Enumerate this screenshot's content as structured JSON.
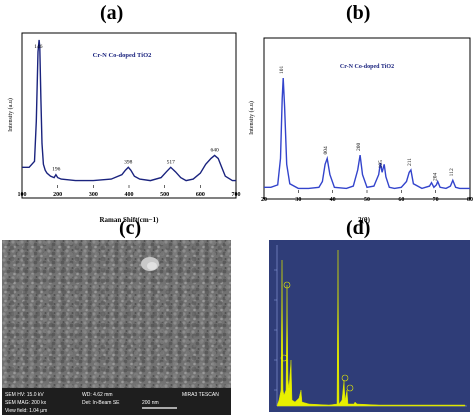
{
  "panels": {
    "a": "(a)",
    "b": "(b)",
    "c": "(c)",
    "d": "(d)"
  },
  "chart_data": [
    {
      "type": "line",
      "panel": "(a)",
      "title": "Cr-N Co-doped TiO2",
      "xlabel": "Raman Shift(cm−1)",
      "ylabel": "Intensity (a.u)",
      "xlim": [
        100,
        700
      ],
      "xticks": [
        "100",
        "200",
        "300",
        "400",
        "500",
        "600",
        "700"
      ],
      "series": [
        {
          "x": [
            100,
            120,
            135,
            140,
            145,
            148,
            150,
            153,
            156,
            160,
            165,
            170,
            180,
            190,
            195,
            200,
            210,
            250,
            300,
            350,
            380,
            390,
            398,
            405,
            415,
            430,
            460,
            490,
            505,
            517,
            530,
            545,
            560,
            580,
            600,
            615,
            630,
            640,
            650,
            660,
            670,
            690,
            700
          ],
          "y": [
            0.14,
            0.14,
            0.18,
            0.45,
            0.92,
            1.0,
            0.95,
            0.6,
            0.3,
            0.16,
            0.12,
            0.1,
            0.08,
            0.07,
            0.09,
            0.07,
            0.06,
            0.05,
            0.05,
            0.06,
            0.09,
            0.12,
            0.14,
            0.12,
            0.08,
            0.06,
            0.05,
            0.07,
            0.11,
            0.14,
            0.11,
            0.07,
            0.05,
            0.06,
            0.1,
            0.16,
            0.2,
            0.22,
            0.2,
            0.14,
            0.08,
            0.05,
            0.05
          ]
        }
      ],
      "annotations": [
        {
          "x": 146,
          "label": "146"
        },
        {
          "x": 196,
          "label": "196"
        },
        {
          "x": 398,
          "label": "398"
        },
        {
          "x": 517,
          "label": "517"
        },
        {
          "x": 640,
          "label": "640"
        }
      ]
    },
    {
      "type": "line",
      "panel": "(b)",
      "title": "Cr-N Co-doped TiO2",
      "xlabel": "2(θ)",
      "ylabel": "Intensity (a.u)",
      "xlim": [
        20,
        80
      ],
      "xticks": [
        "20",
        "30",
        "40",
        "50",
        "60",
        "70",
        "80"
      ],
      "series": [
        {
          "x": [
            20,
            22,
            24,
            24.8,
            25.3,
            25.6,
            26.0,
            26.6,
            27.5,
            30,
            33,
            36,
            37,
            37.8,
            38.4,
            39.2,
            40.5,
            44,
            46,
            47.3,
            48.0,
            48.7,
            50,
            52,
            53.4,
            53.9,
            54.4,
            55.0,
            55.5,
            56.5,
            58,
            60,
            61.5,
            62.3,
            62.8,
            63.5,
            66,
            68.2,
            68.8,
            69.5,
            70.2,
            70.6,
            71.3,
            73,
            74.3,
            75.0,
            75.8,
            77,
            80
          ],
          "y": [
            0.05,
            0.05,
            0.07,
            0.3,
            0.82,
            1.0,
            0.75,
            0.25,
            0.08,
            0.04,
            0.04,
            0.05,
            0.1,
            0.25,
            0.3,
            0.16,
            0.05,
            0.04,
            0.06,
            0.2,
            0.33,
            0.16,
            0.05,
            0.06,
            0.16,
            0.26,
            0.18,
            0.25,
            0.14,
            0.05,
            0.04,
            0.05,
            0.1,
            0.18,
            0.2,
            0.08,
            0.04,
            0.06,
            0.09,
            0.05,
            0.07,
            0.1,
            0.05,
            0.04,
            0.06,
            0.11,
            0.05,
            0.04,
            0.04
          ]
        }
      ],
      "annotations": [
        {
          "x": 25.6,
          "label": "101"
        },
        {
          "x": 38.4,
          "label": "004"
        },
        {
          "x": 48.0,
          "label": "200"
        },
        {
          "x": 54.4,
          "label": "105"
        },
        {
          "x": 62.8,
          "label": "211"
        },
        {
          "x": 70.2,
          "label": "204"
        },
        {
          "x": 75.0,
          "label": "112"
        }
      ]
    }
  ],
  "sem": {
    "line1a": "SEM HV: 15.0 kV",
    "line1b": "WD: 4.62 mm",
    "line1c": "MIRA3 TESCAN",
    "line2a": "SEM MAG: 200 kx",
    "line2b": "Det: In-Beam SE",
    "line2c": "200 nm",
    "line3": "View field: 1.04 µm"
  },
  "colors": {
    "raman_line": "#1a237e",
    "xrd_line": "#3344cc",
    "title_blue": "#1a237e",
    "eds_bg": "#2f3d78",
    "eds_peak": "#e8f000"
  }
}
